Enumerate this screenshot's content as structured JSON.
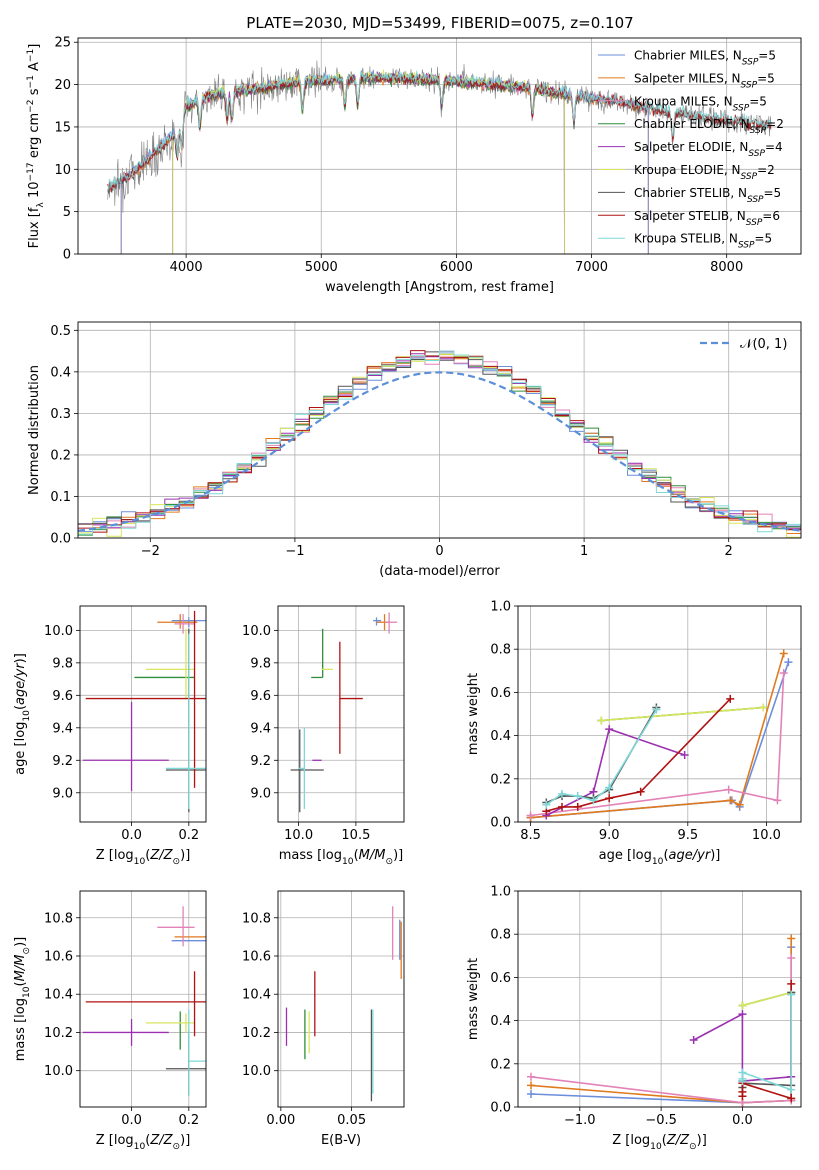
{
  "figure": {
    "title": "PLATE=2030, MJD=53499, FIBERID=0075, z=0.107"
  },
  "colors": {
    "chabrier_miles": "#6c8fdb",
    "salpeter_miles": "#e07a1f",
    "kroupa_miles": "#e283b7",
    "chabrier_elodie": "#2f8f3a",
    "salpeter_elodie": "#9b30b0",
    "kroupa_elodie": "#d9e65c",
    "chabrier_stelib": "#555555",
    "salpeter_stelib": "#b01212",
    "kroupa_stelib": "#7fd8d8"
  },
  "chart_data": [
    {
      "id": "spectrum",
      "type": "line",
      "xlabel": "wavelength [Angstrom, rest frame]",
      "ylabel": "Flux [f_λ 10^-17 erg cm^-2 s^-1 A^-1]",
      "xlim": [
        3200,
        8550
      ],
      "ylim": [
        0,
        25.5
      ],
      "xticks": [
        4000,
        5000,
        6000,
        7000,
        8000
      ],
      "yticks": [
        0,
        5,
        10,
        15,
        20,
        25
      ],
      "legend": "upper right",
      "series": [
        {
          "name": "Chabrier MILES, N_SSP=5",
          "color_key": "chabrier_miles"
        },
        {
          "name": "Salpeter MILES, N_SSP=5",
          "color_key": "salpeter_miles"
        },
        {
          "name": "Kroupa MILES, N_SSP=5",
          "color_key": "kroupa_miles"
        },
        {
          "name": "Chabrier ELODIE, N_SSP=2",
          "color_key": "chabrier_elodie"
        },
        {
          "name": "Salpeter ELODIE, N_SSP=4",
          "color_key": "salpeter_elodie"
        },
        {
          "name": "Kroupa ELODIE, N_SSP=2",
          "color_key": "kroupa_elodie"
        },
        {
          "name": "Chabrier STELIB, N_SSP=5",
          "color_key": "chabrier_stelib"
        },
        {
          "name": "Salpeter STELIB, N_SSP=6",
          "color_key": "salpeter_stelib"
        },
        {
          "name": "Kroupa STELIB, N_SSP=5",
          "color_key": "kroupa_stelib"
        }
      ],
      "continuum": {
        "x": [
          3420,
          3500,
          3600,
          3700,
          3800,
          3900,
          3950,
          4000,
          4200,
          4500,
          4800,
          5000,
          5200,
          5500,
          5800,
          6000,
          6300,
          6600,
          6900,
          7200,
          7400,
          7600,
          7900,
          8100,
          8300
        ],
        "y": [
          7.8,
          8.5,
          9.5,
          11.0,
          12.5,
          14.0,
          15.0,
          17.5,
          18.8,
          19.5,
          20.3,
          20.5,
          20.7,
          20.8,
          20.6,
          20.4,
          20.0,
          19.5,
          18.6,
          18.0,
          17.2,
          16.8,
          16.0,
          15.6,
          15.2
        ]
      },
      "absorption_lines": [
        3934,
        3969,
        4102,
        4304,
        4340,
        4861,
        5175,
        5270,
        5890,
        6563,
        6870,
        7600
      ]
    },
    {
      "id": "residuals",
      "type": "step",
      "xlabel": "(data-model)/error",
      "ylabel": "Normed distribution",
      "xlim": [
        -2.5,
        2.5
      ],
      "ylim": [
        0,
        0.52
      ],
      "xticks": [
        -2,
        -1,
        0,
        1,
        2
      ],
      "yticks": [
        0.0,
        0.1,
        0.2,
        0.3,
        0.4,
        0.5
      ],
      "bin_width": 0.1,
      "reference_curve": {
        "name": "𝒩(0, 1)",
        "sigma": 1,
        "style": "dashed"
      },
      "legend": "upper right"
    },
    {
      "id": "age-vs-Z",
      "type": "errorbar",
      "xlabel": "Z [log10(Z/Z⊙)]",
      "ylabel": "age [log10(age/yr)]",
      "xlim": [
        -0.18,
        0.26
      ],
      "ylim": [
        8.82,
        10.15
      ],
      "xticks": [
        0.0,
        0.2
      ],
      "yticks": [
        9.0,
        9.2,
        9.4,
        9.6,
        9.8,
        10.0
      ],
      "points": [
        {
          "s": "chabrier_miles",
          "x": 0.2,
          "xerr": [
            0.06,
            0.06
          ],
          "y": 10.06,
          "yerr": [
            0.04,
            0.02
          ]
        },
        {
          "s": "salpeter_miles",
          "x": 0.17,
          "xerr": [
            0.08,
            0.06
          ],
          "y": 10.05,
          "yerr": [
            0.04,
            0.05
          ]
        },
        {
          "s": "kroupa_miles",
          "x": 0.18,
          "xerr": [
            0.03,
            0.04
          ],
          "y": 10.04,
          "yerr": [
            0.06,
            0.06
          ]
        },
        {
          "s": "chabrier_elodie",
          "x": 0.17,
          "xerr": [
            0.16,
            0.05
          ],
          "y": 9.71,
          "yerr": [
            0.0,
            0.0
          ]
        },
        {
          "s": "salpeter_elodie",
          "x": 0.0,
          "xerr": [
            0.17,
            0.13
          ],
          "y": 9.2,
          "yerr": [
            0.19,
            0.36
          ]
        },
        {
          "s": "kroupa_elodie",
          "x": 0.19,
          "xerr": [
            0.14,
            0.03
          ],
          "y": 9.76,
          "yerr": [
            0.18,
            0.25
          ]
        },
        {
          "s": "chabrier_stelib",
          "x": 0.2,
          "xerr": [
            0.08,
            0.06
          ],
          "y": 9.14,
          "yerr": [
            0.26,
            0.87
          ]
        },
        {
          "s": "salpeter_stelib",
          "x": 0.22,
          "xerr": [
            0.38,
            0.04
          ],
          "y": 9.58,
          "yerr": [
            0.55,
            0.54
          ]
        },
        {
          "s": "kroupa_stelib",
          "x": 0.2,
          "xerr": [
            0.08,
            0.07
          ],
          "y": 9.15,
          "yerr": [
            0.25,
            0.83
          ]
        }
      ]
    },
    {
      "id": "age-vs-mass",
      "type": "errorbar",
      "xlabel": "mass [log10(M/M⊙)]",
      "ylabel": "",
      "xlim": [
        9.82,
        10.92
      ],
      "ylim": [
        8.82,
        10.15
      ],
      "xticks": [
        10.0,
        10.5
      ],
      "yticks": [
        9.0,
        9.2,
        9.4,
        9.6,
        9.8,
        10.0
      ],
      "points": [
        {
          "s": "chabrier_miles",
          "x": 10.68,
          "xerr": [
            0.03,
            0.04
          ],
          "y": 10.06,
          "yerr": [
            0.03,
            0.02
          ]
        },
        {
          "s": "salpeter_miles",
          "x": 10.75,
          "xerr": [
            0.07,
            0.05
          ],
          "y": 10.05,
          "yerr": [
            0.05,
            0.05
          ]
        },
        {
          "s": "kroupa_miles",
          "x": 10.79,
          "xerr": [
            0.04,
            0.07
          ],
          "y": 10.05,
          "yerr": [
            0.07,
            0.06
          ]
        },
        {
          "s": "chabrier_elodie",
          "x": 10.21,
          "xerr": [
            0.1,
            0.0
          ],
          "y": 9.71,
          "yerr": [
            0.0,
            0.3
          ]
        },
        {
          "s": "salpeter_elodie",
          "x": 10.2,
          "xerr": [
            0.08,
            0.0
          ],
          "y": 9.2,
          "yerr": [
            0.0,
            0.0
          ]
        },
        {
          "s": "kroupa_elodie",
          "x": 10.25,
          "xerr": [
            0.05,
            0.05
          ],
          "y": 9.76,
          "yerr": [
            0.0,
            0.0
          ]
        },
        {
          "s": "chabrier_stelib",
          "x": 10.01,
          "xerr": [
            0.08,
            0.21
          ],
          "y": 9.14,
          "yerr": [
            0.26,
            0.25
          ]
        },
        {
          "s": "salpeter_stelib",
          "x": 10.36,
          "xerr": [
            0.0,
            0.2
          ],
          "y": 9.58,
          "yerr": [
            0.34,
            0.35
          ]
        },
        {
          "s": "kroupa_stelib",
          "x": 10.05,
          "xerr": [
            0.05,
            0.0
          ],
          "y": 9.15,
          "yerr": [
            0.25,
            0.25
          ]
        }
      ]
    },
    {
      "id": "massweight-vs-age",
      "type": "line",
      "xlabel": "age [log10(age/yr)]",
      "ylabel": "mass weight",
      "xlim": [
        8.42,
        10.22
      ],
      "ylim": [
        0,
        1.0
      ],
      "xticks": [
        8.5,
        9.0,
        9.5,
        10.0
      ],
      "yticks": [
        0.0,
        0.2,
        0.4,
        0.6,
        0.8,
        1.0
      ],
      "series": [
        {
          "s": "chabrier_miles",
          "x": [
            8.5,
            9.78,
            9.83,
            10.14
          ],
          "y": [
            0.02,
            0.1,
            0.07,
            0.74
          ]
        },
        {
          "s": "salpeter_miles",
          "x": [
            8.5,
            9.77,
            9.83,
            10.11
          ],
          "y": [
            0.02,
            0.1,
            0.08,
            0.78
          ]
        },
        {
          "s": "kroupa_miles",
          "x": [
            8.5,
            9.76,
            10.07,
            10.11
          ],
          "y": [
            0.03,
            0.15,
            0.1,
            0.69
          ]
        },
        {
          "s": "chabrier_elodie",
          "x": [
            8.95,
            9.98
          ],
          "y": [
            0.47,
            0.53
          ]
        },
        {
          "s": "salpeter_elodie",
          "x": [
            8.6,
            8.9,
            9.0,
            9.48
          ],
          "y": [
            0.03,
            0.14,
            0.43,
            0.31
          ]
        },
        {
          "s": "kroupa_elodie",
          "x": [
            8.95,
            9.98
          ],
          "y": [
            0.47,
            0.53
          ]
        },
        {
          "s": "chabrier_stelib",
          "x": [
            8.6,
            8.7,
            8.8,
            8.9,
            9.0,
            9.3
          ],
          "y": [
            0.09,
            0.12,
            0.12,
            0.11,
            0.15,
            0.53
          ]
        },
        {
          "s": "salpeter_stelib",
          "x": [
            8.6,
            8.7,
            8.8,
            9.0,
            9.2,
            9.77
          ],
          "y": [
            0.05,
            0.07,
            0.07,
            0.11,
            0.14,
            0.57
          ]
        },
        {
          "s": "kroupa_stelib",
          "x": [
            8.6,
            8.7,
            8.8,
            8.9,
            9.0,
            9.3
          ],
          "y": [
            0.08,
            0.13,
            0.12,
            0.1,
            0.16,
            0.52
          ]
        }
      ]
    },
    {
      "id": "mass-vs-Z",
      "type": "errorbar",
      "xlabel": "Z [log10(Z/Z⊙)]",
      "ylabel": "mass [log10(M/M⊙)]",
      "xlim": [
        -0.18,
        0.26
      ],
      "ylim": [
        9.81,
        10.94
      ],
      "xticks": [
        0.0,
        0.2
      ],
      "yticks": [
        10.0,
        10.2,
        10.4,
        10.6,
        10.8
      ],
      "points": [
        {
          "s": "chabrier_miles",
          "x": 0.2,
          "xerr": [
            0.06,
            0.06
          ],
          "y": 10.68,
          "yerr": [
            0.0,
            0.0
          ]
        },
        {
          "s": "salpeter_miles",
          "x": 0.2,
          "xerr": [
            0.05,
            0.06
          ],
          "y": 10.7,
          "yerr": [
            0.0,
            0.0
          ]
        },
        {
          "s": "kroupa_miles",
          "x": 0.18,
          "xerr": [
            0.09,
            0.04
          ],
          "y": 10.75,
          "yerr": [
            0.1,
            0.11
          ]
        },
        {
          "s": "chabrier_elodie",
          "x": 0.17,
          "xerr": [
            0.0,
            0.0
          ],
          "y": 10.21,
          "yerr": [
            0.1,
            0.1
          ]
        },
        {
          "s": "salpeter_elodie",
          "x": 0.0,
          "xerr": [
            0.17,
            0.13
          ],
          "y": 10.2,
          "yerr": [
            0.07,
            0.07
          ]
        },
        {
          "s": "kroupa_elodie",
          "x": 0.19,
          "xerr": [
            0.14,
            0.03
          ],
          "y": 10.25,
          "yerr": [
            0.05,
            0.05
          ]
        },
        {
          "s": "chabrier_stelib",
          "x": 0.2,
          "xerr": [
            0.08,
            0.06
          ],
          "y": 10.01,
          "yerr": [
            0.14,
            0.2
          ]
        },
        {
          "s": "salpeter_stelib",
          "x": 0.22,
          "xerr": [
            0.38,
            0.04
          ],
          "y": 10.36,
          "yerr": [
            0.18,
            0.16
          ]
        },
        {
          "s": "kroupa_stelib",
          "x": 0.2,
          "xerr": [
            0.0,
            0.06
          ],
          "y": 10.05,
          "yerr": [
            0.18,
            0.27
          ]
        }
      ]
    },
    {
      "id": "mass-vs-ebv",
      "type": "errorbar",
      "xlabel": "E(B-V)",
      "ylabel": "",
      "xlim": [
        -0.002,
        0.087
      ],
      "ylim": [
        9.81,
        10.94
      ],
      "xticks": [
        0.0,
        0.05
      ],
      "yticks": [
        10.0,
        10.2,
        10.4,
        10.6,
        10.8
      ],
      "points": [
        {
          "s": "chabrier_miles",
          "x": 0.084,
          "xerr": [
            0.0,
            0.0
          ],
          "y": 10.68,
          "yerr": [
            0.1,
            0.11
          ]
        },
        {
          "s": "salpeter_miles",
          "x": 0.085,
          "xerr": [
            0.0,
            0.0
          ],
          "y": 10.63,
          "yerr": [
            0.15,
            0.15
          ]
        },
        {
          "s": "kroupa_miles",
          "x": 0.079,
          "xerr": [
            0.0,
            0.0
          ],
          "y": 10.72,
          "yerr": [
            0.14,
            0.14
          ]
        },
        {
          "s": "chabrier_elodie",
          "x": 0.017,
          "xerr": [
            0.0,
            0.0
          ],
          "y": 10.19,
          "yerr": [
            0.13,
            0.13
          ]
        },
        {
          "s": "salpeter_elodie",
          "x": 0.004,
          "xerr": [
            0.0,
            0.0
          ],
          "y": 10.23,
          "yerr": [
            0.1,
            0.1
          ]
        },
        {
          "s": "kroupa_elodie",
          "x": 0.02,
          "xerr": [
            0.0,
            0.0
          ],
          "y": 10.2,
          "yerr": [
            0.11,
            0.11
          ]
        },
        {
          "s": "chabrier_stelib",
          "x": 0.064,
          "xerr": [
            0.0,
            0.0
          ],
          "y": 10.08,
          "yerr": [
            0.24,
            0.24
          ]
        },
        {
          "s": "salpeter_stelib",
          "x": 0.024,
          "xerr": [
            0.0,
            0.0
          ],
          "y": 10.35,
          "yerr": [
            0.17,
            0.17
          ]
        },
        {
          "s": "kroupa_stelib",
          "x": 0.065,
          "xerr": [
            0.0,
            0.0
          ],
          "y": 10.1,
          "yerr": [
            0.22,
            0.22
          ]
        }
      ]
    },
    {
      "id": "massweight-vs-Z",
      "type": "line",
      "xlabel": "Z [log10(Z/Z⊙)]",
      "ylabel": "mass weight",
      "xlim": [
        -1.38,
        0.36
      ],
      "ylim": [
        0,
        1.0
      ],
      "xticks": [
        -1.0,
        -0.5,
        0.0
      ],
      "yticks": [
        0.0,
        0.2,
        0.4,
        0.6,
        0.8,
        1.0
      ],
      "series": [
        {
          "s": "chabrier_miles",
          "x": [
            -1.3,
            0.0,
            0.3,
            0.3
          ],
          "y": [
            0.06,
            0.02,
            0.03,
            0.74
          ]
        },
        {
          "s": "salpeter_miles",
          "x": [
            -1.3,
            0.0,
            0.3,
            0.3
          ],
          "y": [
            0.1,
            0.02,
            0.03,
            0.78
          ]
        },
        {
          "s": "kroupa_miles",
          "x": [
            -1.3,
            0.0,
            0.3,
            0.3
          ],
          "y": [
            0.14,
            0.02,
            0.03,
            0.69
          ]
        },
        {
          "s": "chabrier_elodie",
          "x": [
            0.0,
            0.3
          ],
          "y": [
            0.47,
            0.53
          ]
        },
        {
          "s": "salpeter_elodie",
          "x": [
            -0.3,
            0.0,
            0.0,
            0.3
          ],
          "y": [
            0.31,
            0.43,
            0.12,
            0.14
          ]
        },
        {
          "s": "kroupa_elodie",
          "x": [
            0.0,
            0.3
          ],
          "y": [
            0.47,
            0.53
          ]
        },
        {
          "s": "chabrier_stelib",
          "x": [
            0.0,
            0.0,
            0.0,
            0.3,
            0.3
          ],
          "y": [
            0.09,
            0.12,
            0.11,
            0.1,
            0.53
          ]
        },
        {
          "s": "salpeter_stelib",
          "x": [
            0.0,
            0.0,
            0.0,
            0.3,
            0.3
          ],
          "y": [
            0.05,
            0.07,
            0.11,
            0.04,
            0.57
          ]
        },
        {
          "s": "kroupa_stelib",
          "x": [
            0.0,
            0.0,
            0.0,
            0.3,
            0.3
          ],
          "y": [
            0.13,
            0.12,
            0.16,
            0.08,
            0.52
          ]
        }
      ]
    }
  ]
}
